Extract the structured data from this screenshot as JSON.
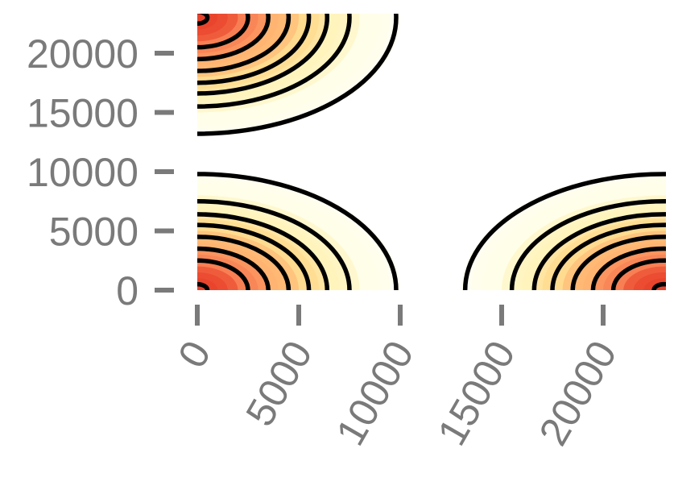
{
  "chart_data": {
    "type": "contour",
    "title": "",
    "xlabel": "",
    "ylabel": "",
    "xlim": [
      0,
      23000
    ],
    "ylim": [
      0,
      23000
    ],
    "x_ticks": [
      0,
      5000,
      10000,
      15000,
      20000
    ],
    "y_ticks": [
      0,
      5000,
      10000,
      15000,
      20000
    ],
    "x_tick_labels": [
      "0",
      "5000",
      "10000",
      "15000",
      "20000"
    ],
    "y_tick_labels": [
      "0",
      "5000",
      "10000",
      "15000",
      "20000"
    ],
    "x_tick_label_rotation_deg": -60,
    "grid": false,
    "legend": "none",
    "colormap": [
      "#ffffff",
      "#fffde8",
      "#fff2b8",
      "#ffd98a",
      "#ffb070",
      "#f77a50",
      "#e8402a"
    ],
    "contour_color": "#000000",
    "hotspots": [
      {
        "name": "lower-left",
        "x": 0,
        "y": 0
      },
      {
        "name": "upper-left",
        "x": 0,
        "y": 23000
      },
      {
        "name": "lower-right",
        "x": 23000,
        "y": 0
      }
    ],
    "falloff_radius": 10000,
    "contour_levels": [
      {
        "radius": 500
      },
      {
        "radius": 2500
      },
      {
        "radius": 3500
      },
      {
        "radius": 4500
      },
      {
        "radius": 5500
      },
      {
        "radius": 6400
      },
      {
        "radius": 7500
      },
      {
        "radius": 9800
      }
    ]
  }
}
